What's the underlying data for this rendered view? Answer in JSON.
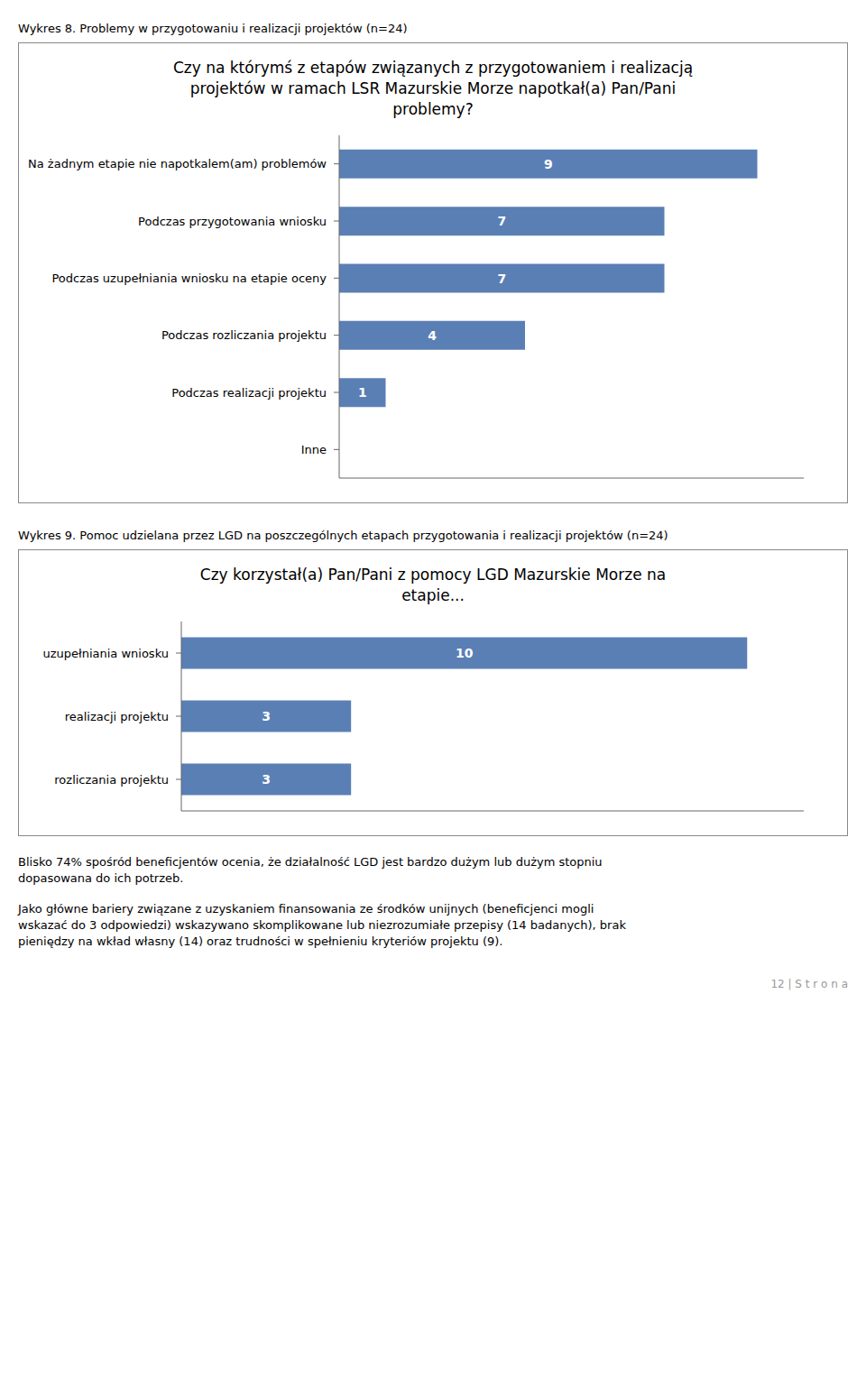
{
  "chart_data": [
    {
      "type": "bar",
      "orientation": "horizontal",
      "subtitle": "Wykres 8. Problemy w przygotowaniu i realizacji projektów (n=24)",
      "title": "Czy na którymś z etapów związanych z przygotowaniem i realizacją\nprojektów w ramach LSR Mazurskie Morze napotkał(a) Pan/Pani\nproblemy?",
      "categories": [
        "Na żadnym etapie nie napotkalem(am) problemów",
        "Podczas przygotowania wniosku",
        "Podczas uzupełniania wniosku na etapie oceny",
        "Podczas rozliczania projektu",
        "Podczas realizacji projektu",
        "Inne"
      ],
      "values": [
        9,
        7,
        7,
        4,
        1,
        0
      ],
      "color": "#5a7fb5",
      "xlim": [
        0,
        10
      ],
      "tick_labels": "y",
      "data_labels": true,
      "grid": false
    },
    {
      "type": "bar",
      "orientation": "horizontal",
      "subtitle": "Wykres 9. Pomoc udzielana przez LGD na poszczególnych etapach przygotowania i realizacji projektów (n=24)",
      "title": "Czy korzystał(a) Pan/Pani z pomocy LGD Mazurskie Morze na\netapie...",
      "categories": [
        "uzupełniania wniosku",
        "realizacji projektu",
        "rozliczania projektu"
      ],
      "values": [
        10,
        3,
        3
      ],
      "color": "#5a7fb5",
      "xlim": [
        0,
        11
      ],
      "tick_labels": "y",
      "data_labels": true,
      "grid": false,
      "annotations": [
        "Blisko 74% spośród beneficjentów ocenia, że działalność LGD jest bardzo dużym lub dużym stopniu\ndopasowana do ich potrzeb.",
        "Jako główne bariery związane z uzyskaniem finansowania ze środków unijnych (beneficjenci mogli\nwskazać do 3 odpowiedzi) wskazywano skomplikowane lub niezrozumiałe przepisy (14 badanych), brak\npieniędzy na wkład własny (14) oraz trudności w spełnieniu kryteriów projektu (9).",
        "12 | S t r o n a"
      ]
    }
  ]
}
